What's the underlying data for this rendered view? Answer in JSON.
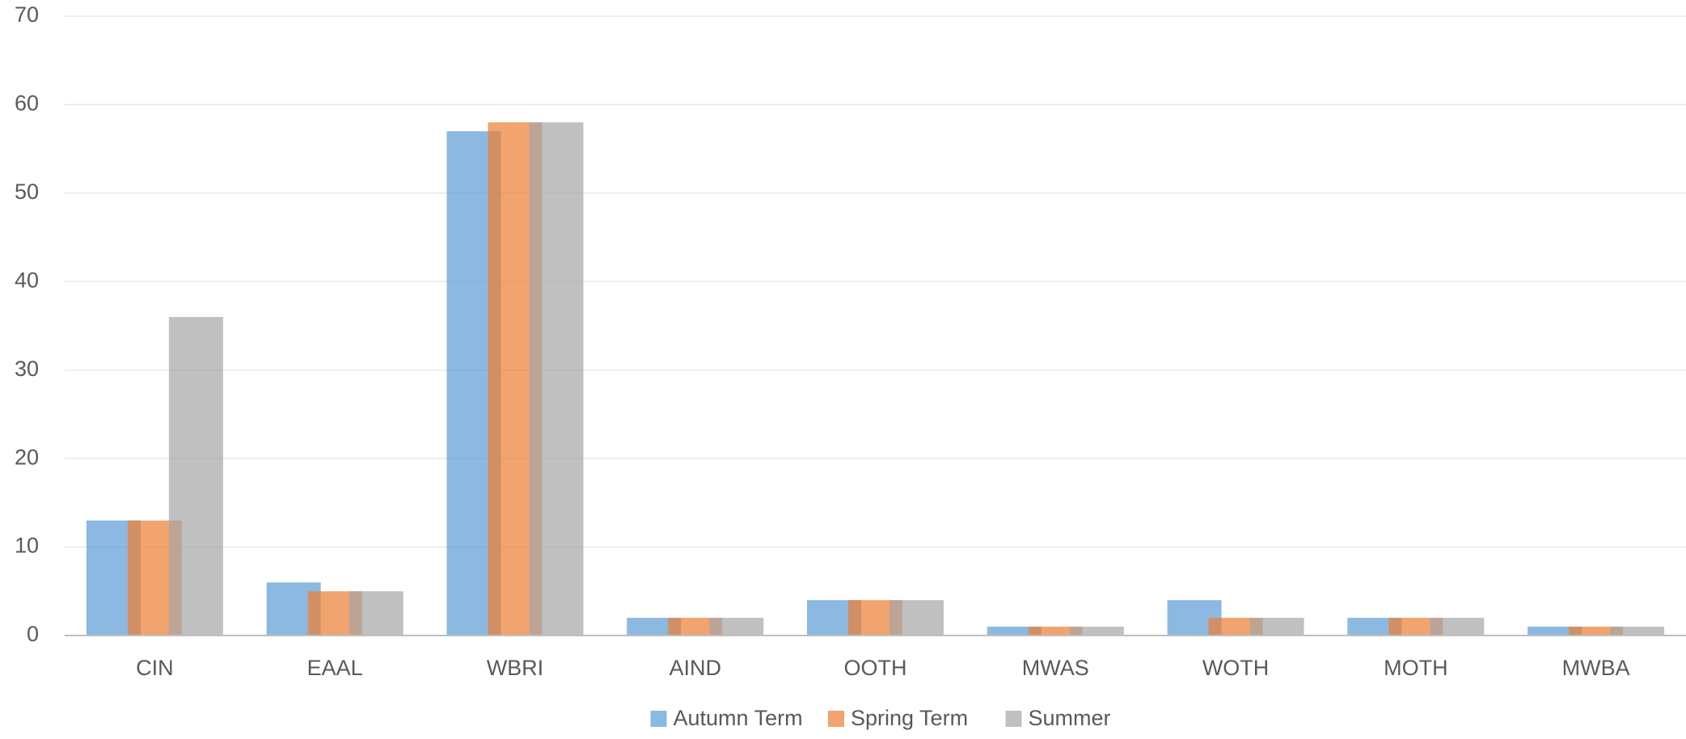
{
  "chart_data": {
    "type": "bar",
    "categories": [
      "CIN",
      "EAAL",
      "WBRI",
      "AIND",
      "OOTH",
      "MWAS",
      "WOTH",
      "MOTH",
      "MWBA"
    ],
    "series": [
      {
        "name": "Autumn Term",
        "color": "#5b9bd5",
        "values": [
          13,
          6,
          57,
          2,
          4,
          1,
          4,
          2,
          1
        ]
      },
      {
        "name": "Spring Term",
        "color": "#ed7d31",
        "values": [
          13,
          5,
          58,
          2,
          4,
          1,
          2,
          2,
          1
        ]
      },
      {
        "name": "Summer",
        "color": "#a5a5a5",
        "values": [
          36,
          5,
          58,
          2,
          4,
          1,
          2,
          2,
          1
        ]
      }
    ],
    "ylim": [
      0,
      70
    ],
    "yticks": [
      0,
      10,
      20,
      30,
      40,
      50,
      60,
      70
    ],
    "grid": true,
    "legend": "bottom"
  }
}
